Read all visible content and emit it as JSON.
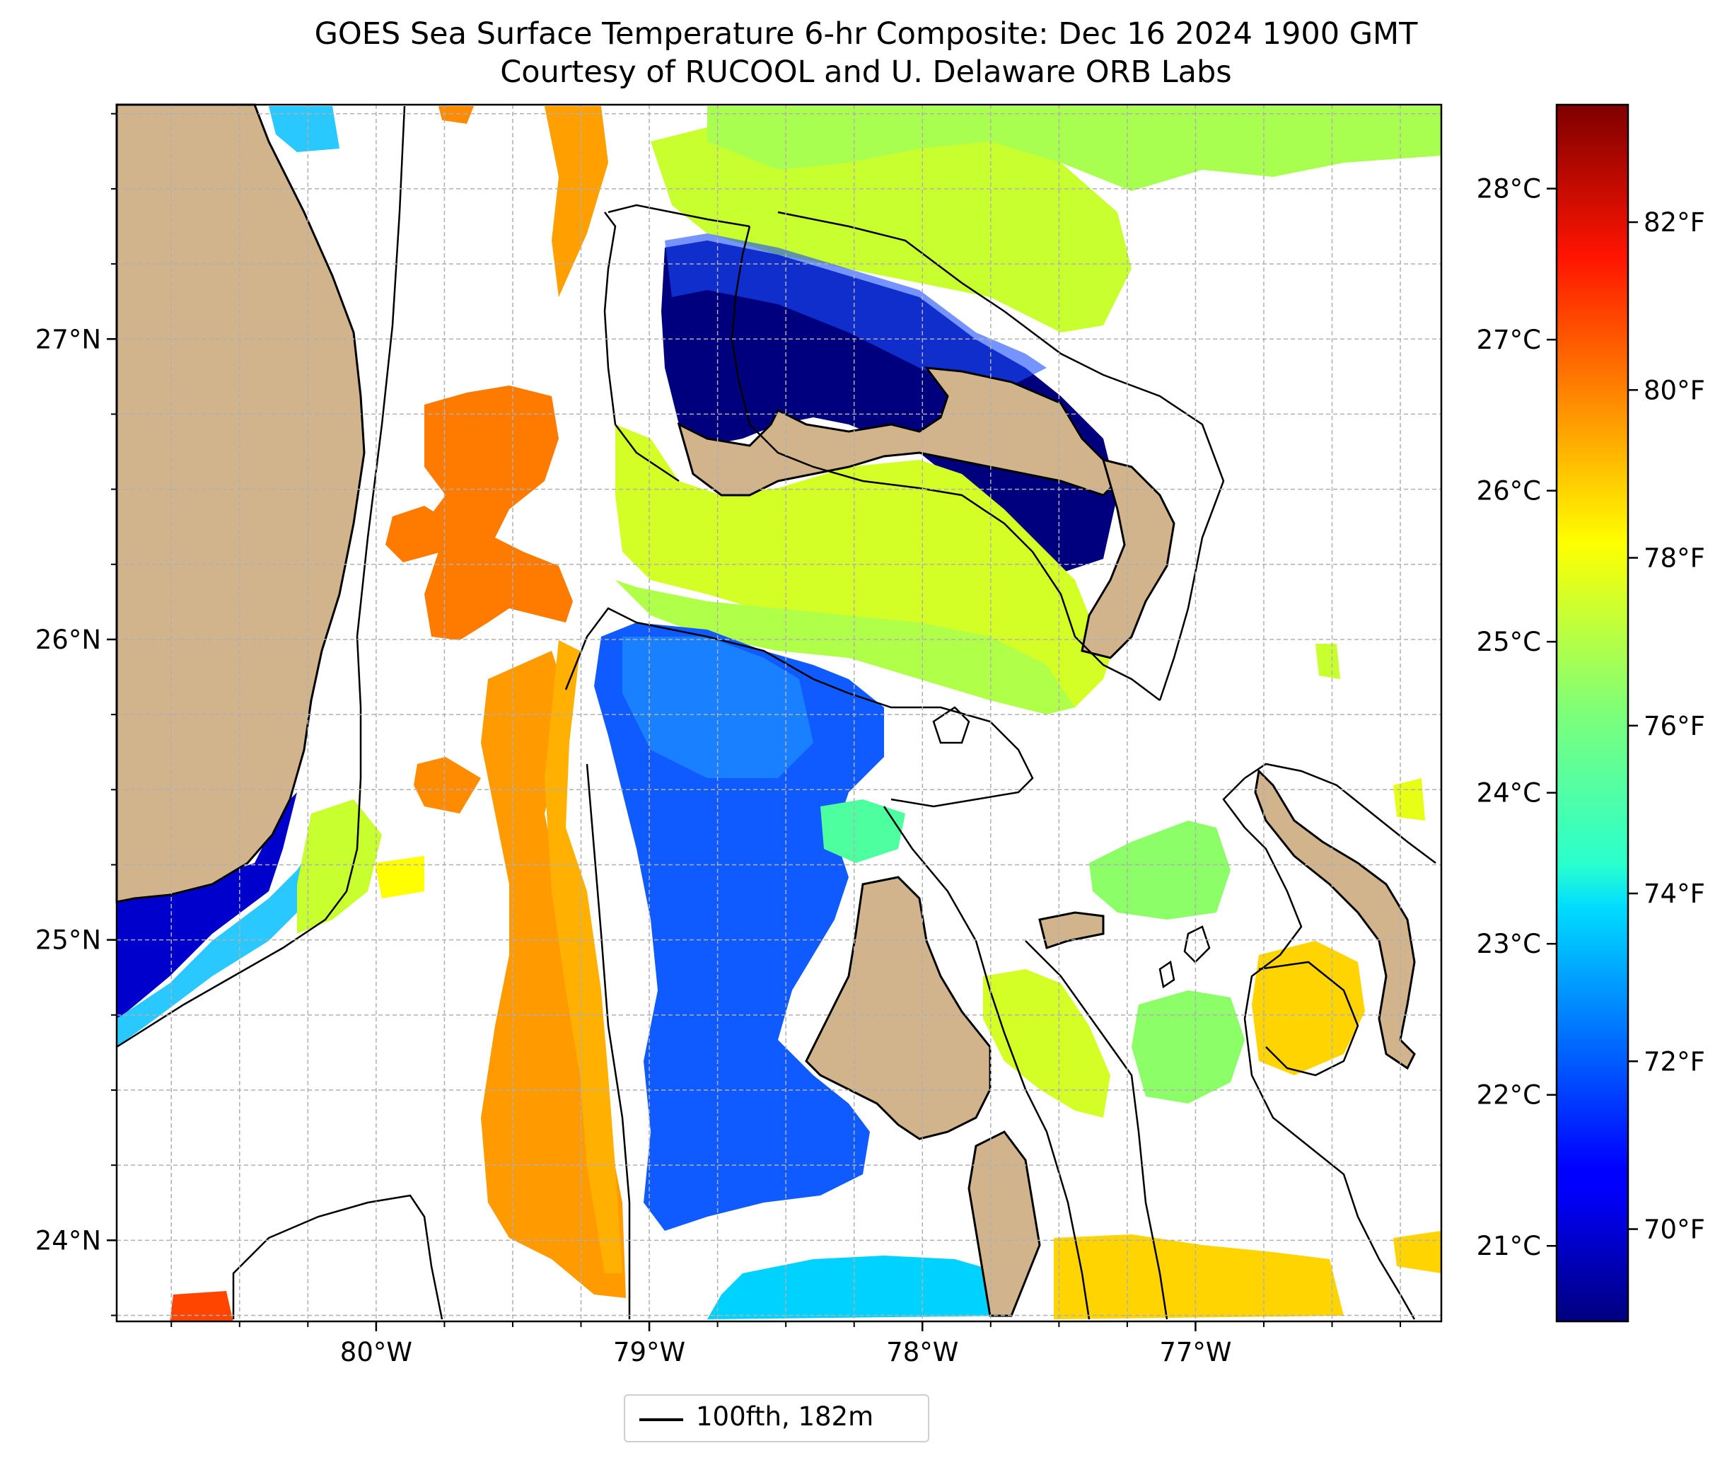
{
  "title_line1": "GOES Sea Surface Temperature 6-hr Composite: Dec 16 2024 1900 GMT",
  "title_line2": "Courtesy of RUCOOL and U. Delaware ORB Labs",
  "map": {
    "lon_range": [
      -80.95,
      -76.1
    ],
    "lat_range": [
      23.73,
      27.78
    ],
    "lon_ticks": [
      {
        "value": -80,
        "label": "80°W"
      },
      {
        "value": -79,
        "label": "79°W"
      },
      {
        "value": -78,
        "label": "78°W"
      },
      {
        "value": -77,
        "label": "77°W"
      }
    ],
    "lat_ticks": [
      {
        "value": 24,
        "label": "24°N"
      },
      {
        "value": 25,
        "label": "25°N"
      },
      {
        "value": 26,
        "label": "26°N"
      },
      {
        "value": 27,
        "label": "27°N"
      }
    ],
    "gridlines": true,
    "land_color": "#d2b48c"
  },
  "colorbar": {
    "colormap": "jet",
    "range_f": [
      68.9,
      83.4
    ],
    "celsius_ticks": [
      "21°C",
      "22°C",
      "23°C",
      "24°C",
      "25°C",
      "26°C",
      "27°C",
      "28°C"
    ],
    "fahrenheit_ticks": [
      "70°F",
      "72°F",
      "74°F",
      "76°F",
      "78°F",
      "80°F",
      "82°F"
    ]
  },
  "legend": {
    "label": "100fth, 182m",
    "position": "lower center"
  }
}
